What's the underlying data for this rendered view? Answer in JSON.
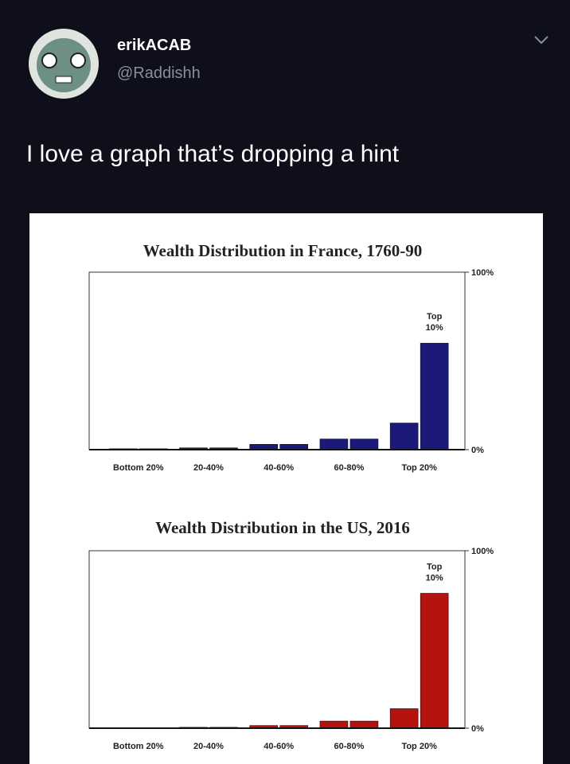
{
  "tweet": {
    "name": "erikACAB",
    "handle": "@Raddishh",
    "text": "I love a graph that’s dropping a hint"
  },
  "chart_data": [
    {
      "type": "bar",
      "title": "Wealth Distribution in France, 1760-90",
      "categories": [
        "Bottom 20%",
        null,
        "20-40%",
        null,
        "40-60%",
        null,
        "60-80%",
        null,
        "Top 20%",
        null
      ],
      "values": [
        0.5,
        0.5,
        1,
        1,
        3,
        3,
        6,
        6,
        15,
        60
      ],
      "annotation": [
        "Top",
        "10%"
      ],
      "color": "#1b1a78",
      "ylim": [
        0,
        100
      ],
      "yticks": [
        {
          "value": 0,
          "label": "0%"
        },
        {
          "value": 100,
          "label": "100%"
        }
      ]
    },
    {
      "type": "bar",
      "title": "Wealth Distribution in the US, 2016",
      "categories": [
        "Bottom 20%",
        null,
        "20-40%",
        null,
        "40-60%",
        null,
        "60-80%",
        null,
        "Top 20%",
        null
      ],
      "values": [
        0,
        0,
        0.5,
        0.5,
        1.5,
        1.5,
        4,
        4,
        11,
        76
      ],
      "annotation": [
        "Top",
        "10%"
      ],
      "color": "#b3120f",
      "ylim": [
        0,
        100
      ],
      "yticks": [
        {
          "value": 0,
          "label": "0%"
        },
        {
          "value": 100,
          "label": "100%"
        }
      ]
    }
  ]
}
